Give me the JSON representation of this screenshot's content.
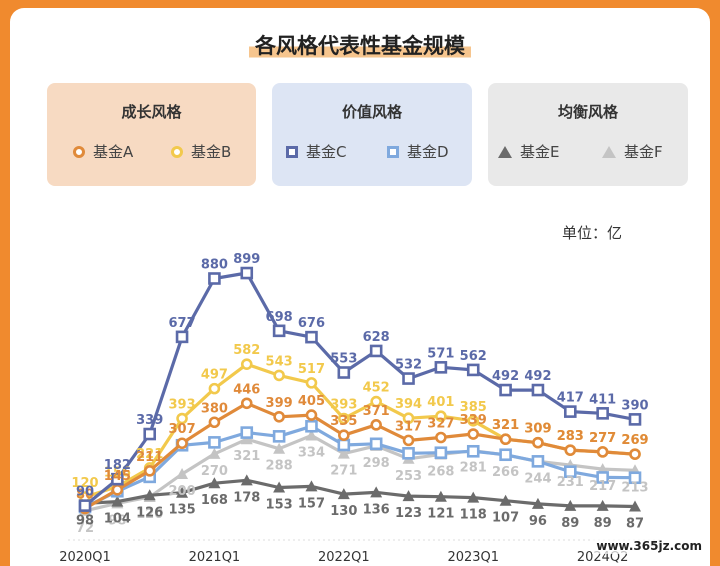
{
  "watermark": "www.365jz.com",
  "chart_data": {
    "type": "line",
    "title": "各风格代表性基金规模",
    "unit_label": "单位：亿",
    "groups": [
      {
        "name": "成长风格",
        "color": "#f7dac2",
        "series": [
          "基金A",
          "基金B"
        ]
      },
      {
        "name": "价值风格",
        "color": "#dde5f4",
        "series": [
          "基金C",
          "基金D"
        ]
      },
      {
        "name": "均衡风格",
        "color": "#e9e9e9",
        "series": [
          "基金E",
          "基金F"
        ]
      }
    ],
    "x_tick_labels": [
      "2020Q1",
      "2021Q1",
      "2022Q1",
      "2023Q1",
      "2024Q2"
    ],
    "x_tick_indices": [
      0,
      4,
      8,
      12,
      16
    ],
    "series": [
      {
        "name": "基金A",
        "color": "#e08a3a",
        "marker": "circle",
        "values": [
          80,
          145,
          211,
          307,
          380,
          446,
          399,
          405,
          335,
          371,
          317,
          327,
          339,
          321,
          309,
          283,
          277,
          269
        ]
      },
      {
        "name": "基金B",
        "color": "#f2c94c",
        "marker": "circle",
        "values": [
          120,
          156,
          221,
          393,
          497,
          582,
          543,
          517,
          393,
          452,
          394,
          401,
          385,
          321,
          309,
          283,
          277,
          269
        ]
      },
      {
        "name": "基金C",
        "color": "#5b6aa8",
        "marker": "square",
        "values": [
          90,
          182,
          339,
          677,
          880,
          899,
          698,
          676,
          553,
          628,
          532,
          571,
          562,
          492,
          492,
          417,
          411,
          390
        ]
      },
      {
        "name": "基金D",
        "color": "#7fa9de",
        "marker": "square",
        "values": [
          85,
          140,
          190,
          300,
          310,
          344,
          331,
          366,
          301,
          305,
          272,
          274,
          279,
          267,
          244,
          208,
          188,
          187
        ]
      },
      {
        "name": "基金E",
        "color": "#6b6b6b",
        "marker": "triangle",
        "values": [
          98,
          104,
          126,
          135,
          168,
          178,
          153,
          157,
          130,
          136,
          123,
          121,
          118,
          107,
          96,
          89,
          89,
          87
        ]
      },
      {
        "name": "基金F",
        "color": "#c4c4c4",
        "marker": "triangle",
        "values": [
          72,
          98,
          120,
          200,
          270,
          321,
          288,
          334,
          271,
          298,
          253,
          268,
          281,
          266,
          244,
          231,
          217,
          213
        ]
      }
    ],
    "labeled_series": [
      "基金A",
      "基金B",
      "基金C",
      "基金E",
      "基金F"
    ],
    "ylim": [
      40,
      1000
    ],
    "grid": false,
    "legend_position": "top"
  }
}
